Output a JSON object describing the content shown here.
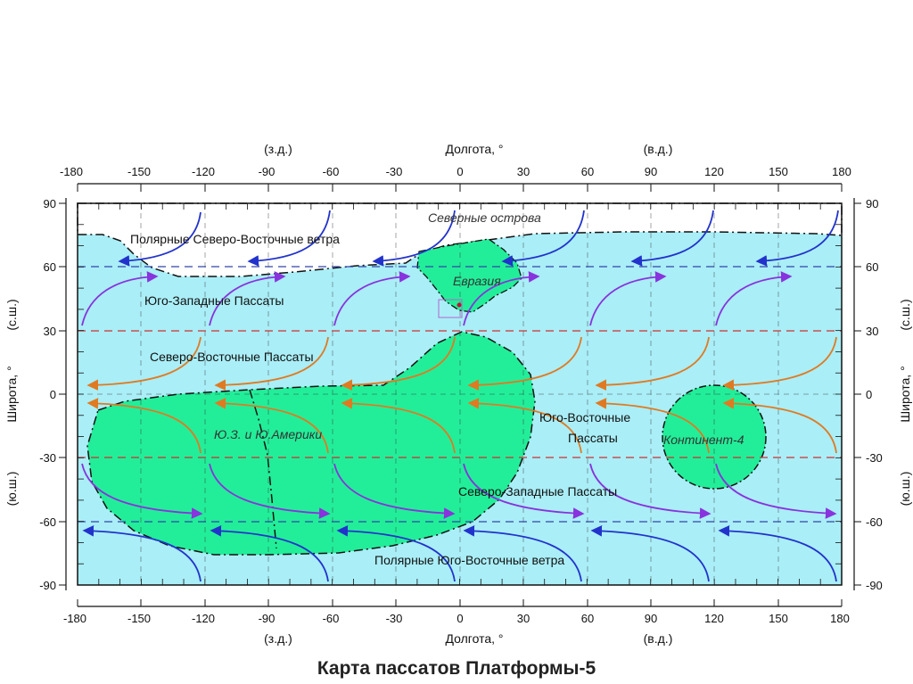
{
  "caption": "Карта пассатов Платформы-5",
  "axes": {
    "x_title": "Долгота, °",
    "x_west": "(з.д.)",
    "x_east": "(в.д.)",
    "y_title": "Широта, °",
    "y_north": "(с.ш.)",
    "y_south": "(ю.ш.)",
    "x_ticks": [
      "-180",
      "-150",
      "-120",
      "-90",
      "-60",
      "-30",
      "0",
      "30",
      "60",
      "90",
      "120",
      "150",
      "180"
    ],
    "y_ticks": [
      "90",
      "60",
      "30",
      "0",
      "-30",
      "-60",
      "-90"
    ],
    "xlim": [
      -180,
      180
    ],
    "ylim": [
      -90,
      90
    ]
  },
  "labels": {
    "north_islands": "Северные острова",
    "polar_ne": "Полярные Северо-Восточные ветра",
    "sw_trades": "Юго-Западные Пассаты",
    "ne_trades": "Северо-Восточные Пассаты",
    "eurasia": "Евразия",
    "sw_namerica": "Ю.З. и Ю.Америки",
    "se_trades_1": "Юго-Восточные",
    "se_trades_2": "Пассаты",
    "continent4": "Континент-4",
    "nw_trades": "Северо-Западные Пассаты",
    "polar_se": "Полярные Юго-Восточные ветра"
  },
  "colors": {
    "ocean": "#aaeef7",
    "land": "#22ee99",
    "north_cap": "#ffffff",
    "polar_wind": "#2233cc",
    "westerly_wind": "#8833dd",
    "trade_wind": "#e07a22",
    "dash_60": "#3344aa",
    "dash_30": "#cc3333"
  }
}
